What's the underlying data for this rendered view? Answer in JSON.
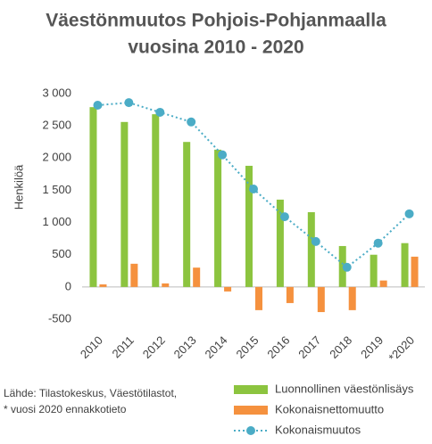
{
  "chart_data": {
    "type": "bar_line",
    "title": [
      "Väestönmuutos Pohjois-Pohjanmaalla",
      "vuosina 2010 - 2020"
    ],
    "y_label": "Henkilöä",
    "categories": [
      "2010",
      "2011",
      "2012",
      "2013",
      "2014",
      "2015",
      "2016",
      "2017",
      "2018",
      "2019",
      "*2020"
    ],
    "series": [
      {
        "name": "Luonnollinen väestönlisäys",
        "color": "#8cc43f",
        "kind": "bar",
        "values": [
          2790,
          2560,
          2680,
          2250,
          2130,
          1880,
          1355,
          1160,
          635,
          500,
          680
        ]
      },
      {
        "name": "Kokonaisnettomuutto",
        "color": "#f5913e",
        "kind": "bar",
        "values": [
          40,
          360,
          55,
          300,
          -70,
          -360,
          -250,
          -390,
          -360,
          100,
          470
        ]
      },
      {
        "name": "Kokonaismuutos",
        "color": "#4bacc6",
        "kind": "line",
        "values": [
          2820,
          2860,
          2710,
          2560,
          2050,
          1520,
          1090,
          705,
          305,
          680,
          1135
        ]
      }
    ],
    "ylim": [
      -500,
      3000
    ],
    "yticks": [
      -500,
      0,
      500,
      {
        "value": 1000,
        "label": "1 000"
      },
      {
        "value": 1500,
        "label": "1 500"
      },
      {
        "value": 2000,
        "label": "2 000"
      },
      {
        "value": 2500,
        "label": "2 500"
      },
      {
        "value": 3000,
        "label": "3 000"
      }
    ],
    "grid": false,
    "legend": "bottom-right",
    "source": [
      "Lähde: Tilastokeskus, Väestötilastot,",
      "* vuosi 2020 ennakkotieto"
    ]
  }
}
